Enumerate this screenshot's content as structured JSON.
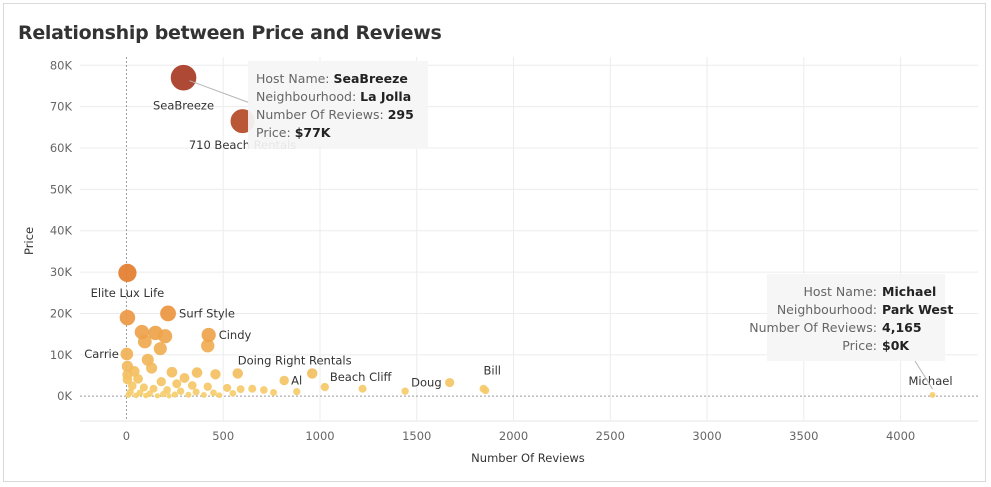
{
  "chart_data": {
    "type": "scatter",
    "title": "Relationship between Price and Reviews",
    "xlabel": "Number Of Reviews",
    "ylabel": "Price",
    "xlim": [
      -240,
      4400
    ],
    "ylim": [
      -6000,
      82000
    ],
    "x_ticks": [
      {
        "value": 0,
        "label": "0"
      },
      {
        "value": 500,
        "label": "500"
      },
      {
        "value": 1000,
        "label": "1000"
      },
      {
        "value": 1500,
        "label": "1500"
      },
      {
        "value": 2000,
        "label": "2000"
      },
      {
        "value": 2500,
        "label": "2500"
      },
      {
        "value": 3000,
        "label": "3000"
      },
      {
        "value": 3500,
        "label": "3500"
      },
      {
        "value": 4000,
        "label": "4000"
      }
    ],
    "y_ticks": [
      {
        "value": 0,
        "label": "0K"
      },
      {
        "value": 10000,
        "label": "10K"
      },
      {
        "value": 20000,
        "label": "20K"
      },
      {
        "value": 30000,
        "label": "30K"
      },
      {
        "value": 40000,
        "label": "40K"
      },
      {
        "value": 50000,
        "label": "50K"
      },
      {
        "value": 60000,
        "label": "60K"
      },
      {
        "value": 70000,
        "label": "70K"
      },
      {
        "value": 80000,
        "label": "80K"
      }
    ],
    "grid": true,
    "size_and_color_encode": "Price",
    "labeled_points": [
      {
        "label": "SeaBreeze",
        "x": 295,
        "y": 77000
      },
      {
        "label": "710 Beach Rentals",
        "x": 600,
        "y": 66500
      },
      {
        "label": "Elite Lux Life",
        "x": 5,
        "y": 29800
      },
      {
        "label": "Surf Style",
        "x": 215,
        "y": 20000
      },
      {
        "label": "Cindy",
        "x": 425,
        "y": 14800
      },
      {
        "label": "Carrie",
        "x": 2,
        "y": 10200
      },
      {
        "label": "Doing Right Rentals",
        "x": 575,
        "y": 5500
      },
      {
        "label": "Al",
        "x": 815,
        "y": 3800
      },
      {
        "label": "Beach Cliff",
        "x": 1025,
        "y": 2200
      },
      {
        "label": "Doug",
        "x": 1670,
        "y": 3300
      },
      {
        "label": "Bill",
        "x": 1845,
        "y": 1800
      },
      {
        "label": "Michael",
        "x": 4165,
        "y": 300
      }
    ],
    "other_points": [
      {
        "x": 5,
        "y": 19000
      },
      {
        "x": 80,
        "y": 15500
      },
      {
        "x": 150,
        "y": 15300
      },
      {
        "x": 200,
        "y": 14500
      },
      {
        "x": 95,
        "y": 13200
      },
      {
        "x": 175,
        "y": 11500
      },
      {
        "x": 420,
        "y": 12200
      },
      {
        "x": 110,
        "y": 8800
      },
      {
        "x": 235,
        "y": 5800
      },
      {
        "x": 365,
        "y": 5700
      },
      {
        "x": 460,
        "y": 5300
      },
      {
        "x": 300,
        "y": 4400
      },
      {
        "x": 960,
        "y": 5500
      },
      {
        "x": 1220,
        "y": 1800
      },
      {
        "x": 1440,
        "y": 1200
      },
      {
        "x": 1855,
        "y": 1400
      },
      {
        "x": 650,
        "y": 1800
      },
      {
        "x": 710,
        "y": 1500
      },
      {
        "x": 760,
        "y": 900
      },
      {
        "x": 880,
        "y": 1100
      },
      {
        "x": 5,
        "y": 7200
      },
      {
        "x": 5,
        "y": 5200
      },
      {
        "x": 5,
        "y": 4000
      },
      {
        "x": 40,
        "y": 6000
      },
      {
        "x": 60,
        "y": 4200
      },
      {
        "x": 130,
        "y": 6800
      },
      {
        "x": 180,
        "y": 3500
      },
      {
        "x": 260,
        "y": 3000
      },
      {
        "x": 340,
        "y": 2600
      },
      {
        "x": 420,
        "y": 2300
      },
      {
        "x": 520,
        "y": 2000
      },
      {
        "x": 590,
        "y": 1700
      },
      {
        "x": 30,
        "y": 2500
      },
      {
        "x": 90,
        "y": 2100
      },
      {
        "x": 140,
        "y": 1800
      },
      {
        "x": 210,
        "y": 1500
      },
      {
        "x": 280,
        "y": 1200
      },
      {
        "x": 360,
        "y": 1000
      },
      {
        "x": 450,
        "y": 800
      },
      {
        "x": 550,
        "y": 700
      },
      {
        "x": 20,
        "y": 1000
      },
      {
        "x": 70,
        "y": 800
      },
      {
        "x": 120,
        "y": 600
      },
      {
        "x": 190,
        "y": 500
      },
      {
        "x": 250,
        "y": 400
      },
      {
        "x": 320,
        "y": 350
      },
      {
        "x": 400,
        "y": 300
      },
      {
        "x": 480,
        "y": 250
      },
      {
        "x": 10,
        "y": 300
      },
      {
        "x": 50,
        "y": 200
      },
      {
        "x": 100,
        "y": 150
      },
      {
        "x": 160,
        "y": 100
      },
      {
        "x": 220,
        "y": 100
      }
    ],
    "tooltips": [
      {
        "point": "SeaBreeze",
        "align": "left",
        "rows": [
          {
            "key": "Host Name:",
            "value": "SeaBreeze"
          },
          {
            "key": "Neighbourhood:",
            "value": "La Jolla"
          },
          {
            "key": "Number Of Reviews:",
            "value": "295"
          },
          {
            "key": "Price:",
            "value": "$77K"
          }
        ]
      },
      {
        "point": "Michael",
        "align": "right",
        "rows": [
          {
            "key": "Host Name:",
            "value": "Michael"
          },
          {
            "key": "Neighbourhood:",
            "value": "Park West"
          },
          {
            "key": "Number Of Reviews:",
            "value": "4,165"
          },
          {
            "key": "Price:",
            "value": "$0K"
          }
        ]
      }
    ],
    "colors": {
      "high": "#a63a23",
      "mid": "#e8812f",
      "low": "#f6cf6e",
      "grid": "#ececec",
      "zero_line": "#9a9a9a"
    }
  }
}
